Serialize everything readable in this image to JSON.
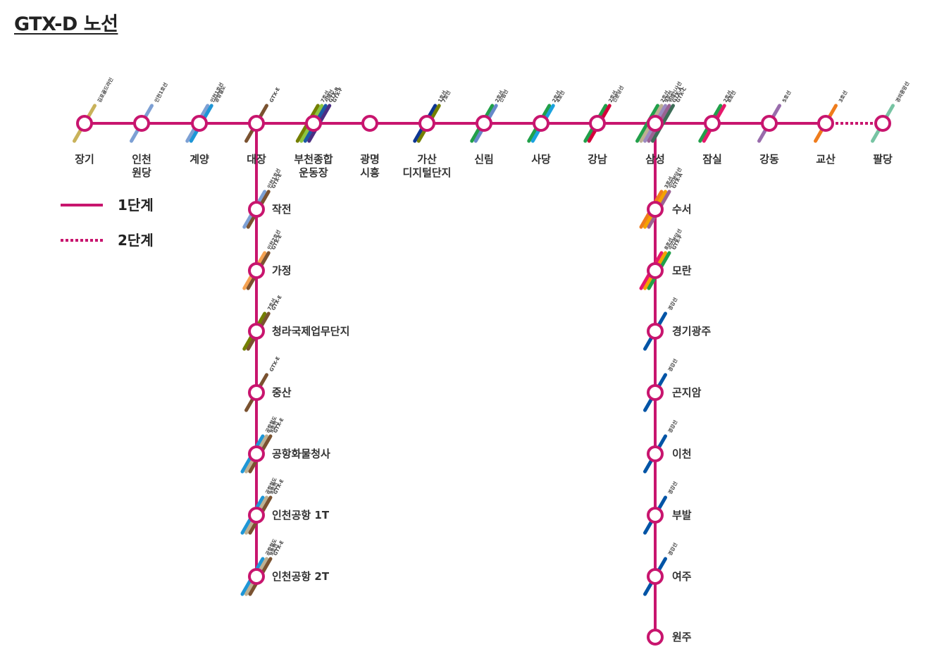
{
  "title": "GTX-D 노선",
  "colors": {
    "line": "#C8156E",
    "station_fill": "#ffffff"
  },
  "legend": [
    {
      "label": "1단계",
      "style": "solid"
    },
    {
      "label": "2단계",
      "style": "dotted"
    }
  ],
  "main_line": [
    {
      "name": [
        "장기"
      ],
      "transfers": [
        {
          "label": "김포골드라인",
          "color": "#C9B25A"
        }
      ]
    },
    {
      "name": [
        "인천",
        "원당"
      ],
      "transfers": [
        {
          "label": "인천1호선",
          "color": "#7DA0D4"
        }
      ]
    },
    {
      "name": [
        "계양"
      ],
      "transfers": [
        {
          "label": "인천1호선",
          "color": "#7DA0D4"
        },
        {
          "label": "공항철도",
          "color": "#1E96D6"
        }
      ]
    },
    {
      "name": [
        "대장"
      ],
      "transfers": [
        {
          "label": "GTX-E",
          "color": "#7A5230"
        }
      ]
    },
    {
      "name": [
        "부천종합",
        "운동장"
      ],
      "transfers": [
        {
          "label": "7호선",
          "color": "#747F00"
        },
        {
          "label": "서해선",
          "color": "#8DC63F"
        },
        {
          "label": "GTX-B",
          "color": "#1B5AA6"
        },
        {
          "label": "GTX-F",
          "color": "#4B2E83"
        }
      ]
    },
    {
      "name": [
        "광명",
        "시흥"
      ],
      "transfers": []
    },
    {
      "name": [
        "가산",
        "디지털단지"
      ],
      "transfers": [
        {
          "label": "1호선",
          "color": "#0D3692"
        },
        {
          "label": "7호선",
          "color": "#747F00"
        }
      ]
    },
    {
      "name": [
        "신림"
      ],
      "transfers": [
        {
          "label": "2호선",
          "color": "#21A04A"
        },
        {
          "label": "신림선",
          "color": "#6789CA"
        }
      ]
    },
    {
      "name": [
        "사당"
      ],
      "transfers": [
        {
          "label": "2호선",
          "color": "#21A04A"
        },
        {
          "label": "4호선",
          "color": "#1BA3DE"
        }
      ]
    },
    {
      "name": [
        "강남"
      ],
      "transfers": [
        {
          "label": "2호선",
          "color": "#21A04A"
        },
        {
          "label": "신분당선",
          "color": "#D4003B"
        }
      ]
    },
    {
      "name": [
        "삼성"
      ],
      "transfers": [
        {
          "label": "2호선",
          "color": "#21A04A"
        },
        {
          "label": "9호선",
          "color": "#BDB092"
        },
        {
          "label": "위례신사선",
          "color": "#9C8AC0"
        },
        {
          "label": "GTX-A",
          "color": "#9A6292"
        },
        {
          "label": "GTX-C",
          "color": "#3E6D58"
        }
      ]
    },
    {
      "name": [
        "잠실"
      ],
      "transfers": [
        {
          "label": "2호선",
          "color": "#21A04A"
        },
        {
          "label": "8호선",
          "color": "#E6186C"
        }
      ]
    },
    {
      "name": [
        "강동"
      ],
      "transfers": [
        {
          "label": "5호선",
          "color": "#996CAC"
        }
      ]
    },
    {
      "name": [
        "교산"
      ],
      "transfers": [
        {
          "label": "3호선",
          "color": "#EF7C1C"
        }
      ]
    },
    {
      "name": [
        "팔당"
      ],
      "transfers": [
        {
          "label": "경의중앙선",
          "color": "#77C4A3"
        }
      ]
    }
  ],
  "west_branch": [
    {
      "name": "작전",
      "transfers": [
        {
          "label": "인천1호선",
          "color": "#7DA0D4"
        },
        {
          "label": "GTX-E",
          "color": "#7A5230"
        }
      ]
    },
    {
      "name": "가정",
      "transfers": [
        {
          "label": "인천2호선",
          "color": "#F5A251"
        },
        {
          "label": "GTX-E",
          "color": "#7A5230"
        }
      ]
    },
    {
      "name": "청라국제업무단지",
      "transfers": [
        {
          "label": "7호선",
          "color": "#747F00"
        },
        {
          "label": "GTX-E",
          "color": "#7A5230"
        }
      ]
    },
    {
      "name": "중산",
      "transfers": [
        {
          "label": "GTX-E",
          "color": "#7A5230"
        }
      ]
    },
    {
      "name": "공항화물청사",
      "transfers": [
        {
          "label": "공항철도",
          "color": "#1E96D6"
        },
        {
          "label": "9호선",
          "color": "#BDB092"
        },
        {
          "label": "GTX-E",
          "color": "#7A5230"
        }
      ]
    },
    {
      "name": "인천공항 1T",
      "transfers": [
        {
          "label": "공항철도",
          "color": "#1E96D6"
        },
        {
          "label": "9호선",
          "color": "#BDB092"
        },
        {
          "label": "GTX-E",
          "color": "#7A5230"
        }
      ]
    },
    {
      "name": "인천공항 2T",
      "transfers": [
        {
          "label": "공항철도",
          "color": "#1E96D6"
        },
        {
          "label": "9호선",
          "color": "#BDB092"
        },
        {
          "label": "GTX-E",
          "color": "#7A5230"
        }
      ]
    }
  ],
  "east_branch": [
    {
      "name": "수서",
      "transfers": [
        {
          "label": "3호선",
          "color": "#EF7C1C"
        },
        {
          "label": "수인분당선",
          "color": "#F5A200"
        },
        {
          "label": "GTX-A",
          "color": "#9A6292"
        }
      ]
    },
    {
      "name": "모란",
      "transfers": [
        {
          "label": "8호선",
          "color": "#E6186C"
        },
        {
          "label": "수인분당선",
          "color": "#F5A200"
        },
        {
          "label": "GTX-F",
          "color": "#21A04A"
        }
      ]
    },
    {
      "name": "경기광주",
      "transfers": [
        {
          "label": "경강선",
          "color": "#0054A6"
        }
      ]
    },
    {
      "name": "곤지암",
      "transfers": [
        {
          "label": "경강선",
          "color": "#0054A6"
        }
      ]
    },
    {
      "name": "이천",
      "transfers": [
        {
          "label": "경강선",
          "color": "#0054A6"
        }
      ]
    },
    {
      "name": "부발",
      "transfers": [
        {
          "label": "경강선",
          "color": "#0054A6"
        }
      ]
    },
    {
      "name": "여주",
      "transfers": [
        {
          "label": "경강선",
          "color": "#0054A6"
        }
      ]
    },
    {
      "name": "원주",
      "transfers": []
    }
  ]
}
